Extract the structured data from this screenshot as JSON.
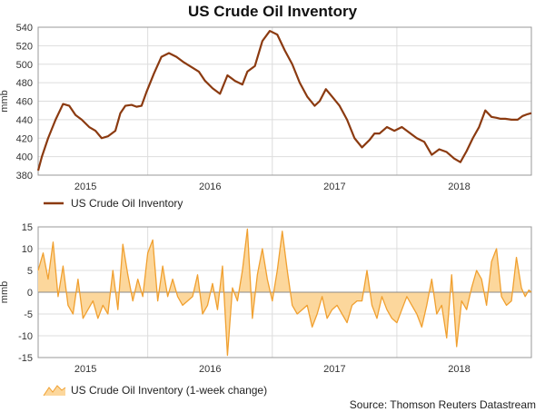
{
  "title": "US Crude Oil Inventory",
  "source": "Source: Thomson Reuters Datastream",
  "colors": {
    "level_line": "#8b3a10",
    "change_line": "#f0a030",
    "change_fill": "#fcd79c",
    "grid": "#dddddd",
    "frame": "#999999"
  },
  "chart_data": [
    {
      "type": "line",
      "title": "US Crude Oil Inventory",
      "ylabel": "mmb",
      "xlabel": "",
      "ylim": [
        380,
        540
      ],
      "yticks": [
        380,
        400,
        420,
        440,
        460,
        480,
        500,
        520,
        540
      ],
      "xlim": [
        2014.62,
        2018.58
      ],
      "xtick_labels": [
        "2015",
        "2016",
        "2017",
        "2018"
      ],
      "grid": true,
      "legend_position": "bottom-left",
      "series": [
        {
          "name": "US Crude Oil Inventory",
          "x": [
            2014.62,
            2014.65,
            2014.7,
            2014.76,
            2014.82,
            2014.87,
            2014.92,
            2014.97,
            2015.03,
            2015.08,
            2015.13,
            2015.18,
            2015.24,
            2015.28,
            2015.32,
            2015.37,
            2015.41,
            2015.45,
            2015.49,
            2015.55,
            2015.61,
            2015.67,
            2015.73,
            2015.79,
            2015.85,
            2015.91,
            2015.96,
            2016.02,
            2016.08,
            2016.14,
            2016.2,
            2016.26,
            2016.3,
            2016.36,
            2016.42,
            2016.48,
            2016.54,
            2016.6,
            2016.66,
            2016.72,
            2016.78,
            2016.84,
            2016.88,
            2016.93,
            2016.98,
            2017.04,
            2017.1,
            2017.16,
            2017.22,
            2017.28,
            2017.32,
            2017.36,
            2017.42,
            2017.48,
            2017.54,
            2017.6,
            2017.66,
            2017.72,
            2017.78,
            2017.84,
            2017.9,
            2017.96,
            2018.01,
            2018.06,
            2018.11,
            2018.16,
            2018.21,
            2018.26,
            2018.3,
            2018.33,
            2018.37,
            2018.42,
            2018.47,
            2018.51,
            2018.55,
            2018.58
          ],
          "y": [
            385,
            400,
            420,
            440,
            457,
            455,
            445,
            440,
            432,
            428,
            420,
            422,
            428,
            447,
            455,
            456,
            454,
            455,
            470,
            490,
            508,
            512,
            508,
            502,
            497,
            492,
            482,
            474,
            468,
            488,
            482,
            478,
            492,
            498,
            525,
            536,
            532,
            515,
            500,
            480,
            465,
            455,
            460,
            473,
            465,
            455,
            440,
            420,
            410,
            418,
            425,
            425,
            432,
            428,
            432,
            426,
            420,
            416,
            402,
            408,
            405,
            398,
            394,
            406,
            420,
            432,
            450,
            443,
            442,
            441,
            441,
            440,
            440,
            444,
            446,
            447
          ]
        }
      ]
    },
    {
      "type": "area",
      "ylabel": "mmb",
      "xlabel": "",
      "ylim": [
        -15,
        15
      ],
      "yticks": [
        -15,
        -10,
        -5,
        0,
        5,
        10,
        15
      ],
      "xlim": [
        2014.62,
        2018.58
      ],
      "xtick_labels": [
        "2015",
        "2016",
        "2017",
        "2018"
      ],
      "grid": true,
      "legend_position": "bottom-left",
      "series": [
        {
          "name": "US Crude Oil Inventory (1-week change)",
          "x": [
            2014.62,
            2014.66,
            2014.7,
            2014.74,
            2014.78,
            2014.82,
            2014.86,
            2014.9,
            2014.94,
            2014.98,
            2015.02,
            2015.06,
            2015.1,
            2015.14,
            2015.18,
            2015.22,
            2015.26,
            2015.3,
            2015.34,
            2015.38,
            2015.42,
            2015.46,
            2015.5,
            2015.54,
            2015.58,
            2015.62,
            2015.66,
            2015.7,
            2015.74,
            2015.78,
            2015.82,
            2015.86,
            2015.9,
            2015.94,
            2015.98,
            2016.02,
            2016.06,
            2016.1,
            2016.14,
            2016.18,
            2016.22,
            2016.26,
            2016.3,
            2016.34,
            2016.38,
            2016.42,
            2016.46,
            2016.5,
            2016.54,
            2016.58,
            2016.62,
            2016.66,
            2016.7,
            2016.74,
            2016.78,
            2016.82,
            2016.86,
            2016.9,
            2016.94,
            2016.98,
            2017.02,
            2017.06,
            2017.1,
            2017.14,
            2017.18,
            2017.22,
            2017.26,
            2017.3,
            2017.34,
            2017.38,
            2017.42,
            2017.46,
            2017.5,
            2017.54,
            2017.58,
            2017.62,
            2017.66,
            2017.7,
            2017.74,
            2017.78,
            2017.82,
            2017.86,
            2017.9,
            2017.94,
            2017.98,
            2018.02,
            2018.06,
            2018.1,
            2018.14,
            2018.18,
            2018.22,
            2018.26,
            2018.3,
            2018.34,
            2018.38,
            2018.42,
            2018.46,
            2018.5,
            2018.53,
            2018.56,
            2018.58
          ],
          "y": [
            5,
            9,
            3,
            11.5,
            -1,
            6,
            -3,
            -5,
            3,
            -6,
            -4,
            -2,
            -6,
            -3,
            -5,
            5,
            -4,
            11,
            4,
            -2,
            3,
            -1,
            9,
            12,
            -2,
            6,
            -1,
            3,
            -1,
            -3,
            -2,
            -1,
            4,
            -5,
            -3,
            2,
            -4,
            6,
            -14.5,
            1,
            -2,
            5,
            14.5,
            -6,
            4,
            10,
            3,
            -2,
            5,
            14,
            5,
            -3,
            -5,
            -4,
            -3,
            -8,
            -5,
            -1,
            -6,
            -4,
            -3,
            -5,
            -7,
            -3,
            -2,
            -2,
            5,
            -3,
            -6,
            -1,
            -4,
            -6,
            -7,
            -4,
            -1,
            -3,
            -5,
            -8,
            -3,
            3,
            -5,
            -3,
            -10.5,
            4,
            -12.5,
            -2,
            -4,
            1,
            5,
            3,
            -3,
            7,
            10,
            -1,
            -3,
            -2,
            8,
            1,
            -1,
            0.5,
            0
          ]
        }
      ]
    }
  ]
}
